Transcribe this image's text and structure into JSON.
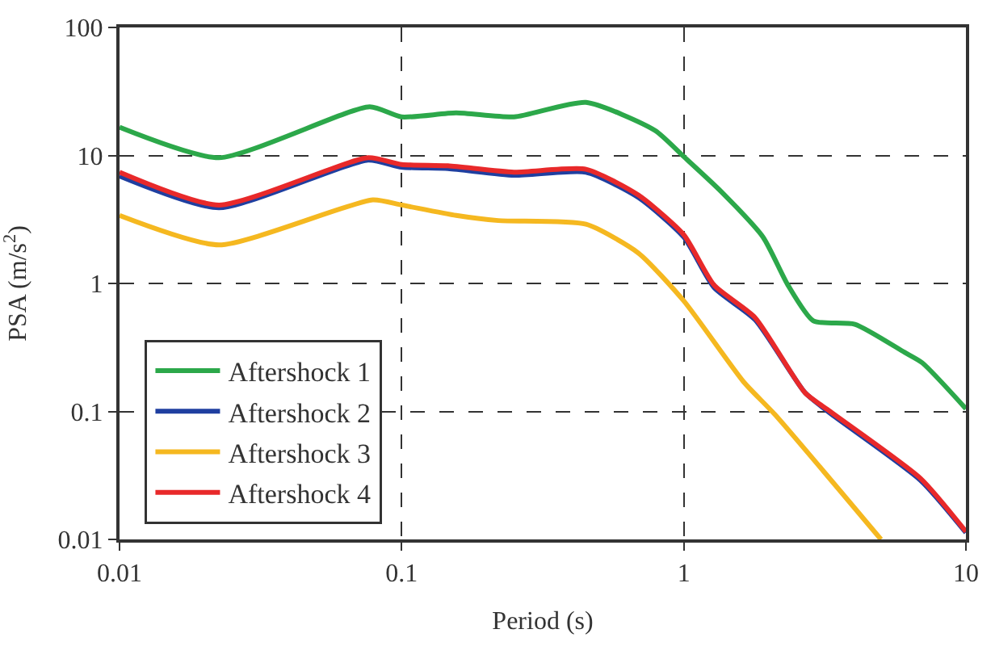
{
  "chart_data": {
    "type": "line",
    "xlabel": "Period (s)",
    "ylabel": "PSA (m/s$^{2}$)",
    "log": "xy",
    "xlim": [
      0.01,
      10
    ],
    "ylim": [
      0.01,
      100
    ],
    "xticks": [
      0.01,
      0.1,
      1,
      10
    ],
    "yticks": [
      0.01,
      0.1,
      1,
      10,
      100
    ],
    "grid": true,
    "legend": "bottom left",
    "line_style": "solid",
    "marker": "none",
    "series": [
      {
        "name": "Aftershock 1",
        "color": "#2ca84a",
        "x": [
          0.01,
          0.0225,
          0.077,
          0.1,
          0.156,
          0.25,
          0.45,
          0.79,
          1,
          1.36,
          1.91,
          2.34,
          2.88,
          4.04,
          6.05,
          7,
          10
        ],
        "values": [
          16.6,
          9.6,
          24,
          20,
          21.5,
          20,
          26,
          15.7,
          9.8,
          5.2,
          2.3,
          0.97,
          0.51,
          0.48,
          0.29,
          0.24,
          0.105
        ]
      },
      {
        "name": "Aftershock 2",
        "color": "#1f3fa0",
        "x": [
          0.01,
          0.0225,
          0.076,
          0.1,
          0.146,
          0.25,
          0.45,
          0.69,
          1,
          1.28,
          1.79,
          2.69,
          3.3,
          6.9,
          10
        ],
        "values": [
          6.9,
          3.9,
          9.2,
          8.1,
          7.9,
          7.0,
          7.4,
          4.7,
          2.3,
          0.93,
          0.52,
          0.14,
          0.097,
          0.029,
          0.0113
        ]
      },
      {
        "name": "Aftershock 3",
        "color": "#f5b820",
        "x": [
          0.01,
          0.0225,
          0.079,
          0.1,
          0.156,
          0.22,
          0.45,
          0.69,
          1,
          1.63,
          2.1,
          5.0
        ],
        "values": [
          3.4,
          2.0,
          4.5,
          4.1,
          3.4,
          3.1,
          2.9,
          1.73,
          0.73,
          0.17,
          0.095,
          0.01
        ]
      },
      {
        "name": "Aftershock 4",
        "color": "#e8292a",
        "x": [
          0.01,
          0.0225,
          0.076,
          0.1,
          0.146,
          0.25,
          0.45,
          0.69,
          1,
          1.28,
          1.79,
          2.69,
          3.3,
          6.9,
          10
        ],
        "values": [
          7.4,
          4.1,
          9.6,
          8.5,
          8.3,
          7.4,
          7.8,
          4.9,
          2.4,
          0.97,
          0.54,
          0.14,
          0.1,
          0.03,
          0.0115
        ]
      }
    ]
  }
}
